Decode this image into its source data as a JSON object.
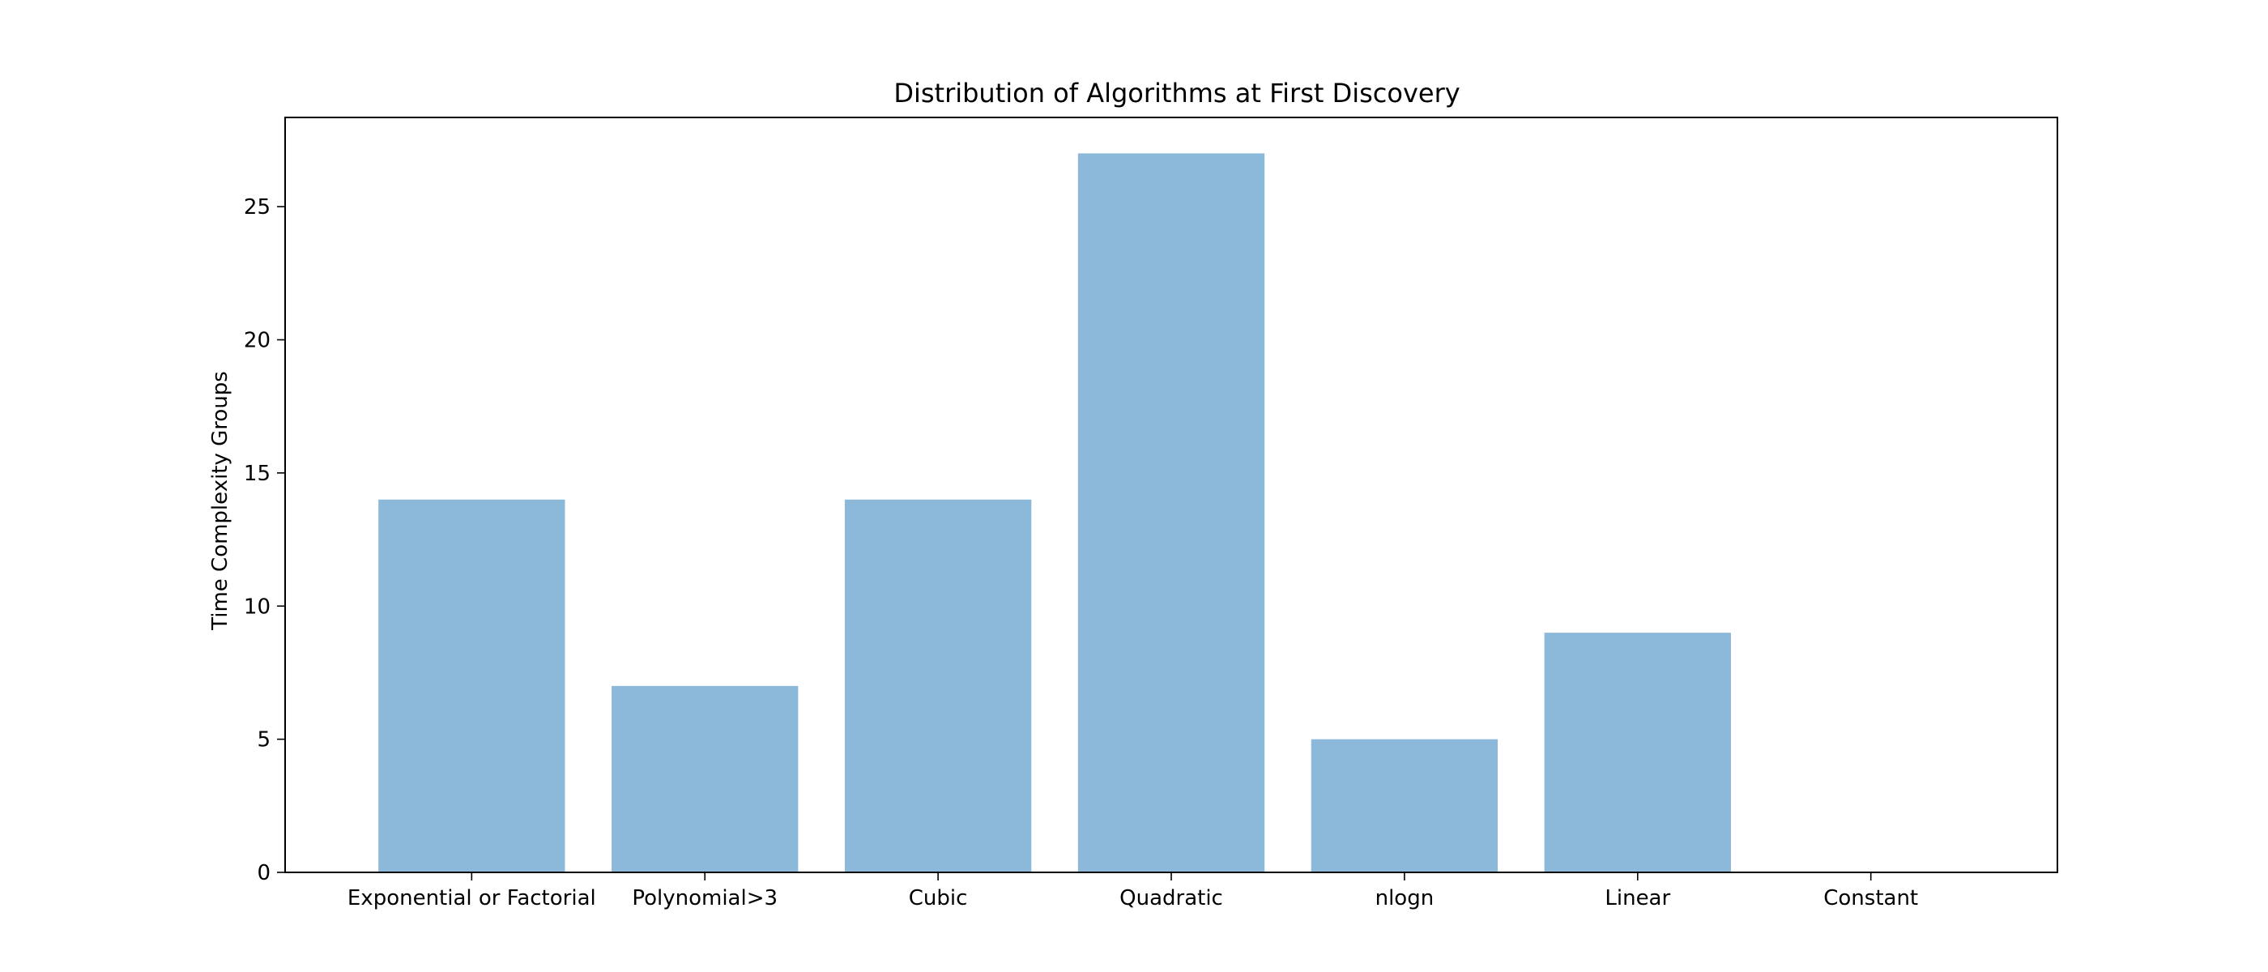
{
  "chart_data": {
    "type": "bar",
    "title": "Distribution of Algorithms at First Discovery",
    "xlabel": "",
    "ylabel": "Time Complexity Groups",
    "categories": [
      "Exponential or Factorial",
      "Polynomial>3",
      "Cubic",
      "Quadratic",
      "nlogn",
      "Linear",
      "Constant"
    ],
    "values": [
      14,
      7,
      14,
      27,
      5,
      9,
      0
    ],
    "ylim": [
      0,
      28.35
    ],
    "yticks": [
      0,
      5,
      10,
      15,
      20,
      25
    ],
    "grid": false,
    "bar_color": "#8cb8d9"
  }
}
